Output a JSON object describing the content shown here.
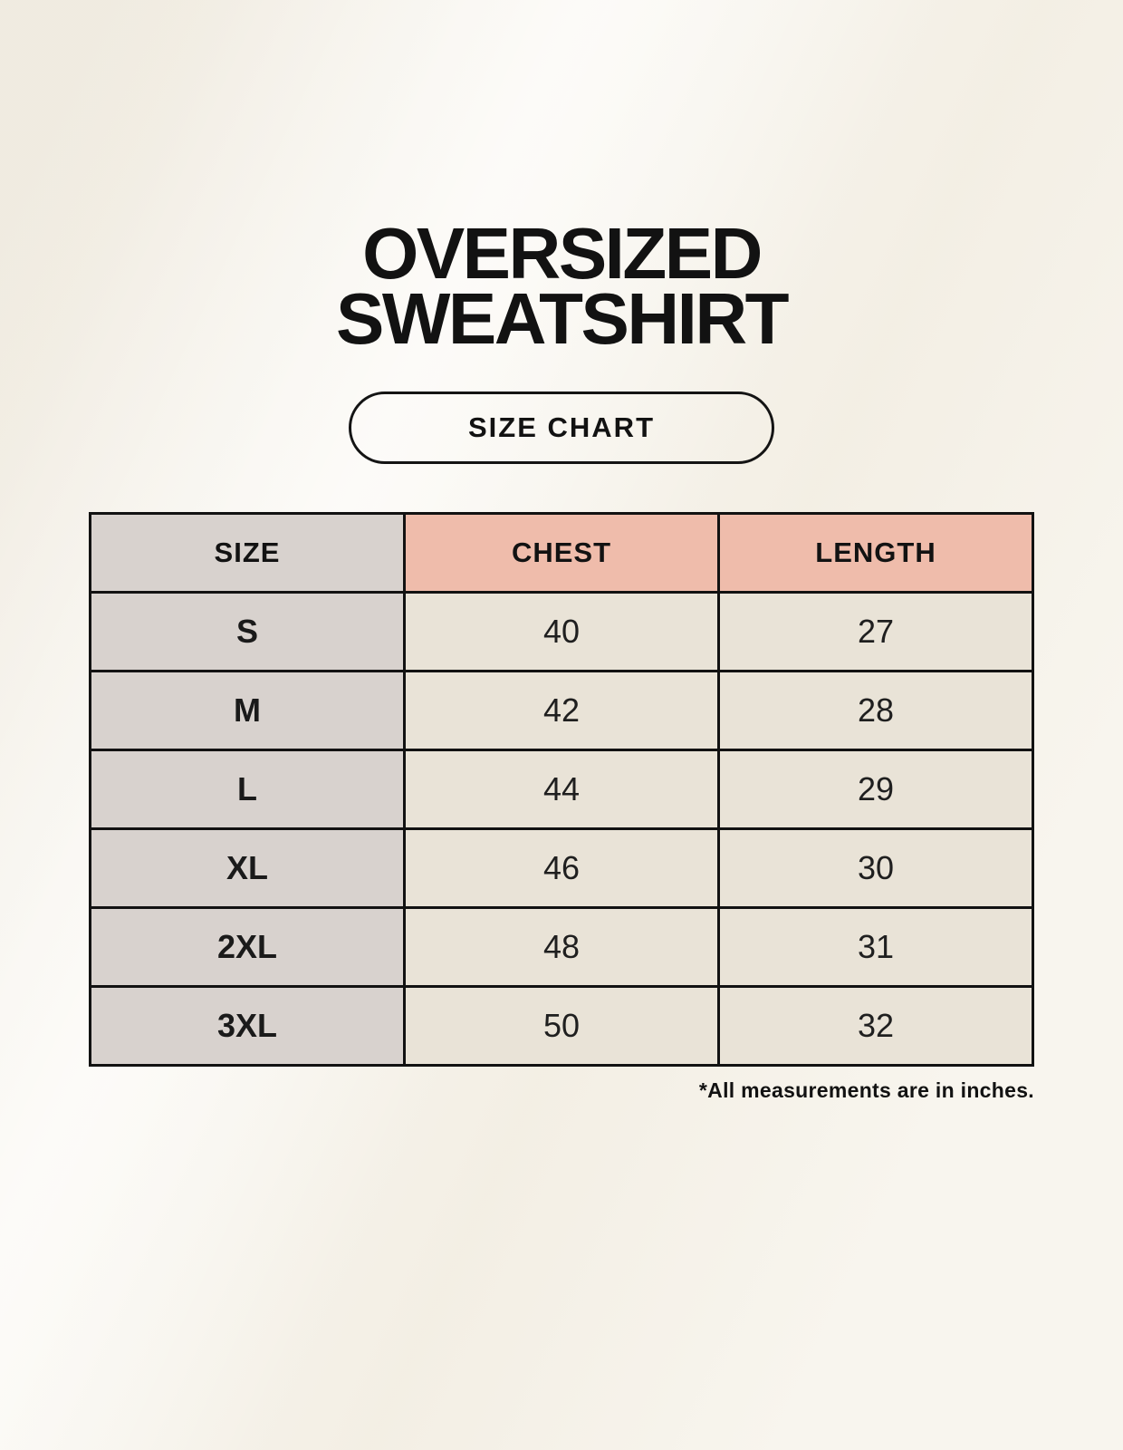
{
  "page": {
    "title": {
      "line1": "OVERSIZED",
      "line2": "SWEATSHIRT"
    },
    "badge": {
      "label": "SIZE CHART"
    },
    "footnote": "*All measurements are in inches."
  },
  "size_chart": {
    "columns": [
      "SIZE",
      "CHEST",
      "LENGTH"
    ],
    "rows": [
      {
        "size": "S",
        "chest": "40",
        "length": "27"
      },
      {
        "size": "M",
        "chest": "42",
        "length": "28"
      },
      {
        "size": "L",
        "chest": "44",
        "length": "29"
      },
      {
        "size": "XL",
        "chest": "46",
        "length": "30"
      },
      {
        "size": "2XL",
        "chest": "48",
        "length": "31"
      },
      {
        "size": "3XL",
        "chest": "50",
        "length": "32"
      }
    ]
  },
  "colors": {
    "background_cream": "#f5f1e7",
    "accent_salmon": "#efbcab",
    "size_column_grey": "#d8d2ce",
    "value_cell_cream": "#e9e3d7",
    "border_black": "#121212",
    "text_black": "#141414"
  }
}
